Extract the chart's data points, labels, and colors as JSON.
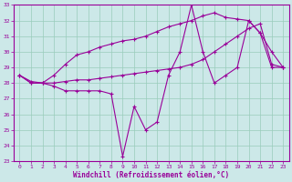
{
  "xlabel": "Windchill (Refroidissement éolien,°C)",
  "ylabel": "",
  "background_color": "#cce8e8",
  "grid_color": "#99ccbb",
  "line_color": "#990099",
  "xlim": [
    -0.5,
    23.5
  ],
  "ylim": [
    23,
    33
  ],
  "yticks": [
    23,
    24,
    25,
    26,
    27,
    28,
    29,
    30,
    31,
    32,
    33
  ],
  "xticks": [
    0,
    1,
    2,
    3,
    4,
    5,
    6,
    7,
    8,
    9,
    10,
    11,
    12,
    13,
    14,
    15,
    16,
    17,
    18,
    19,
    20,
    21,
    22,
    23
  ],
  "series": [
    [
      28.5,
      28.1,
      28.0,
      27.8,
      27.5,
      27.5,
      27.5,
      27.5,
      27.3,
      23.3,
      26.5,
      25.0,
      25.5,
      28.5,
      30.0,
      33.0,
      30.0,
      28.0,
      28.5,
      29.0,
      32.0,
      31.2,
      29.0,
      29.0
    ],
    [
      28.5,
      28.0,
      28.0,
      28.5,
      29.2,
      29.8,
      30.0,
      30.3,
      30.5,
      30.7,
      30.8,
      31.0,
      31.3,
      31.6,
      31.8,
      32.0,
      32.3,
      32.5,
      32.2,
      32.1,
      32.0,
      31.2,
      30.0,
      29.0
    ],
    [
      28.5,
      28.0,
      28.0,
      28.0,
      28.1,
      28.2,
      28.2,
      28.3,
      28.4,
      28.5,
      28.6,
      28.7,
      28.8,
      28.9,
      29.0,
      29.2,
      29.5,
      30.0,
      30.5,
      31.0,
      31.5,
      31.8,
      29.2,
      29.0
    ]
  ]
}
